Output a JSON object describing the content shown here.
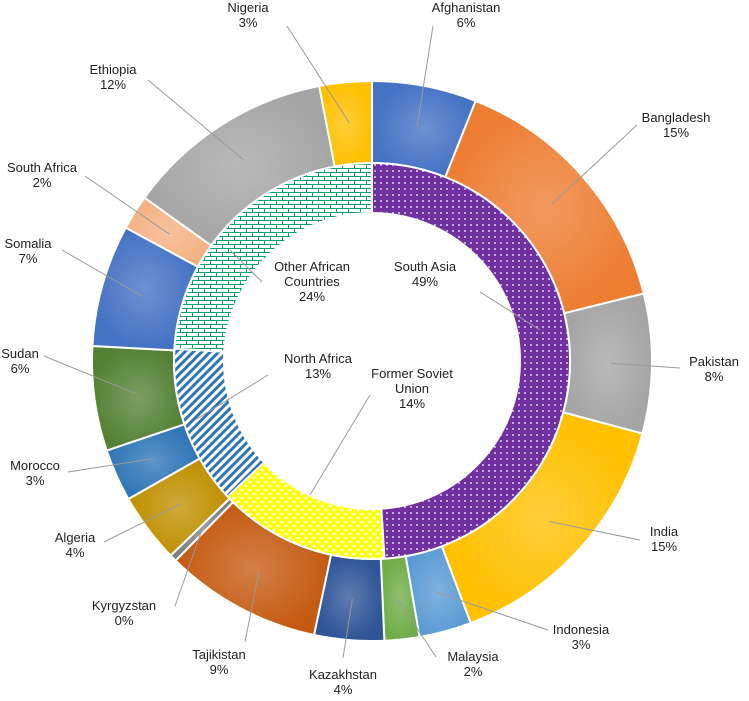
{
  "chart_data": {
    "type": "pie",
    "subtype": "nested-donut",
    "outer_ring": [
      {
        "name": "Afghanistan",
        "label": "6%",
        "value": 6,
        "color": "#4472C4"
      },
      {
        "name": "Bangladesh",
        "label": "15%",
        "value": 15,
        "color": "#ED7D31"
      },
      {
        "name": "Pakistan",
        "label": "8%",
        "value": 8,
        "color": "#A5A5A5"
      },
      {
        "name": "India",
        "label": "15%",
        "value": 15,
        "color": "#FFC000"
      },
      {
        "name": "Indonesia",
        "label": "3%",
        "value": 3,
        "color": "#5B9BD5"
      },
      {
        "name": "Malaysia",
        "label": "2%",
        "value": 2,
        "color": "#70AD47"
      },
      {
        "name": "Kazakhstan",
        "label": "4%",
        "value": 4,
        "color": "#2F5597"
      },
      {
        "name": "Tajikistan",
        "label": "9%",
        "value": 9,
        "color": "#C55A11"
      },
      {
        "name": "Kyrgyzstan",
        "label": "0%",
        "value": 0.4,
        "color": "#7F7F7F"
      },
      {
        "name": "Algeria",
        "label": "4%",
        "value": 4,
        "color": "#BF9000"
      },
      {
        "name": "Morocco",
        "label": "3%",
        "value": 3,
        "color": "#2E75B6"
      },
      {
        "name": "Sudan",
        "label": "6%",
        "value": 6,
        "color": "#548235"
      },
      {
        "name": "Somalia",
        "label": "7%",
        "value": 7,
        "color": "#4472C4"
      },
      {
        "name": "South Africa",
        "label": "2%",
        "value": 2,
        "color": "#F4B183"
      },
      {
        "name": "Ethiopia",
        "label": "12%",
        "value": 12,
        "color": "#A5A5A5"
      },
      {
        "name": "Nigeria",
        "label": "3%",
        "value": 3,
        "color": "#FFC000"
      }
    ],
    "inner_ring": [
      {
        "name": "South Asia",
        "label": "49%",
        "value": 49,
        "color": "#7030A0",
        "pattern": "dots"
      },
      {
        "name": "Former Soviet Union",
        "label": "14%",
        "value": 14,
        "color": "#FFFF00",
        "pattern": "checker"
      },
      {
        "name": "North Africa",
        "label": "13%",
        "value": 13,
        "color": "#2E75B6",
        "pattern": "diagonal"
      },
      {
        "name": "Other African Countries",
        "label": "24%",
        "value": 24,
        "color": "#00A36C",
        "pattern": "brick"
      }
    ],
    "legend": "none"
  }
}
